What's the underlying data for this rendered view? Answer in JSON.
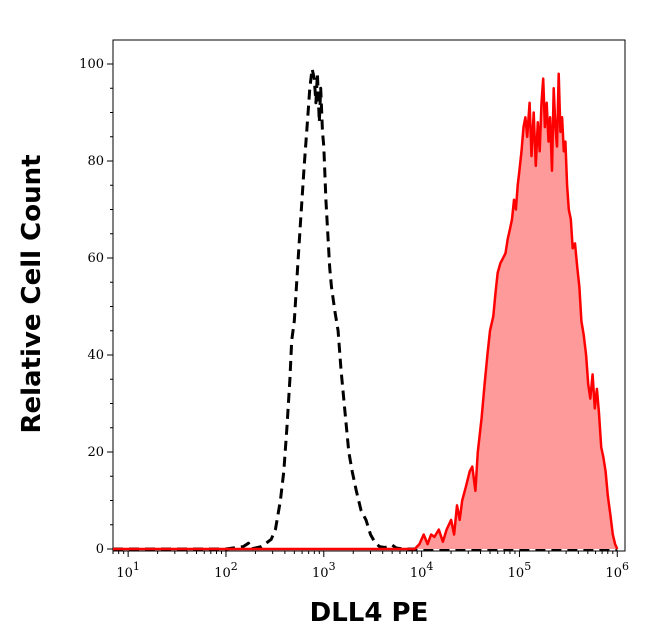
{
  "chart_data": {
    "type": "area",
    "xlabel": "DLL4 PE",
    "ylabel": "Relative Cell Count",
    "x_scale": "log",
    "xlim": [
      7,
      1200000
    ],
    "ylim": [
      0,
      104
    ],
    "grid": false,
    "x_ticks": [
      {
        "value": 10,
        "base": "10",
        "exp": "1"
      },
      {
        "value": 100,
        "base": "10",
        "exp": "2"
      },
      {
        "value": 1000,
        "base": "10",
        "exp": "3"
      },
      {
        "value": 10000,
        "base": "10",
        "exp": "4"
      },
      {
        "value": 100000,
        "base": "10",
        "exp": "5"
      },
      {
        "value": 1000000,
        "base": "10",
        "exp": "6"
      }
    ],
    "y_ticks": [
      "0",
      "20",
      "40",
      "60",
      "80",
      "100"
    ],
    "y_tick_values": [
      0,
      20,
      40,
      60,
      80,
      100
    ],
    "series": [
      {
        "style": "dashed",
        "color": "#000000",
        "fill": "none",
        "points": [
          [
            7,
            0
          ],
          [
            100,
            0
          ],
          [
            150,
            0.5
          ],
          [
            170,
            1.2
          ],
          [
            180,
            0
          ],
          [
            230,
            0.5
          ],
          [
            250,
            1
          ],
          [
            290,
            2
          ],
          [
            320,
            4
          ],
          [
            360,
            10
          ],
          [
            390,
            16
          ],
          [
            420,
            25
          ],
          [
            450,
            35
          ],
          [
            470,
            43
          ],
          [
            500,
            47
          ],
          [
            540,
            58
          ],
          [
            580,
            68
          ],
          [
            630,
            79
          ],
          [
            680,
            88
          ],
          [
            720,
            95
          ],
          [
            760,
            99
          ],
          [
            800,
            97
          ],
          [
            830,
            92
          ],
          [
            860,
            98
          ],
          [
            900,
            88
          ],
          [
            930,
            95
          ],
          [
            970,
            86
          ],
          [
            1000,
            83
          ],
          [
            1050,
            72
          ],
          [
            1100,
            65
          ],
          [
            1150,
            58
          ],
          [
            1200,
            54
          ],
          [
            1300,
            49
          ],
          [
            1400,
            45
          ],
          [
            1500,
            37
          ],
          [
            1650,
            28
          ],
          [
            1800,
            20
          ],
          [
            1950,
            16
          ],
          [
            2150,
            12
          ],
          [
            2400,
            8
          ],
          [
            2700,
            6
          ],
          [
            3000,
            3
          ],
          [
            3300,
            1.5
          ],
          [
            3700,
            0.5
          ],
          [
            4200,
            0.3
          ],
          [
            5000,
            0.8
          ],
          [
            5500,
            0.2
          ],
          [
            6500,
            0
          ],
          [
            1000000,
            0
          ]
        ]
      },
      {
        "style": "solid",
        "color": "#ff0000",
        "fill": "#ff9a9a",
        "points": [
          [
            7,
            0
          ],
          [
            8500,
            0
          ],
          [
            9500,
            1
          ],
          [
            10500,
            3
          ],
          [
            11500,
            1
          ],
          [
            12500,
            3
          ],
          [
            13500,
            2.5
          ],
          [
            15000,
            4
          ],
          [
            16500,
            1.5
          ],
          [
            18000,
            4
          ],
          [
            20000,
            6
          ],
          [
            21500,
            3
          ],
          [
            23000,
            9
          ],
          [
            24500,
            6
          ],
          [
            26000,
            10
          ],
          [
            28500,
            13
          ],
          [
            31000,
            16
          ],
          [
            33000,
            17
          ],
          [
            35500,
            12
          ],
          [
            37500,
            20
          ],
          [
            41000,
            27
          ],
          [
            44000,
            34
          ],
          [
            47000,
            40
          ],
          [
            50000,
            45
          ],
          [
            54000,
            48
          ],
          [
            57000,
            53
          ],
          [
            60000,
            57
          ],
          [
            64000,
            59
          ],
          [
            68000,
            60
          ],
          [
            72000,
            61
          ],
          [
            76000,
            64
          ],
          [
            80000,
            66
          ],
          [
            84000,
            68
          ],
          [
            88000,
            72
          ],
          [
            92000,
            70
          ],
          [
            96000,
            75
          ],
          [
            100000,
            78
          ],
          [
            105000,
            82
          ],
          [
            110000,
            87
          ],
          [
            115000,
            89
          ],
          [
            120000,
            85
          ],
          [
            127000,
            92
          ],
          [
            133000,
            81
          ],
          [
            140000,
            90
          ],
          [
            147000,
            79
          ],
          [
            154000,
            88
          ],
          [
            161000,
            82
          ],
          [
            168000,
            92
          ],
          [
            175000,
            97
          ],
          [
            182000,
            87
          ],
          [
            190000,
            92
          ],
          [
            198000,
            84
          ],
          [
            206000,
            89
          ],
          [
            215000,
            78
          ],
          [
            224000,
            95
          ],
          [
            233000,
            87
          ],
          [
            242000,
            83
          ],
          [
            252000,
            98
          ],
          [
            262000,
            86
          ],
          [
            273000,
            89
          ],
          [
            284000,
            82
          ],
          [
            295000,
            84
          ],
          [
            307000,
            75
          ],
          [
            320000,
            70
          ],
          [
            335000,
            68
          ],
          [
            350000,
            62
          ],
          [
            370000,
            63
          ],
          [
            390000,
            58
          ],
          [
            410000,
            54
          ],
          [
            430000,
            47
          ],
          [
            455000,
            44
          ],
          [
            480000,
            40
          ],
          [
            505000,
            34
          ],
          [
            530000,
            31
          ],
          [
            560000,
            36
          ],
          [
            590000,
            29
          ],
          [
            620000,
            33
          ],
          [
            650000,
            28
          ],
          [
            685000,
            21
          ],
          [
            720000,
            19
          ],
          [
            760000,
            16
          ],
          [
            800000,
            11
          ],
          [
            850000,
            7
          ],
          [
            900000,
            3
          ],
          [
            950000,
            1
          ],
          [
            1000000,
            0
          ]
        ]
      }
    ]
  }
}
